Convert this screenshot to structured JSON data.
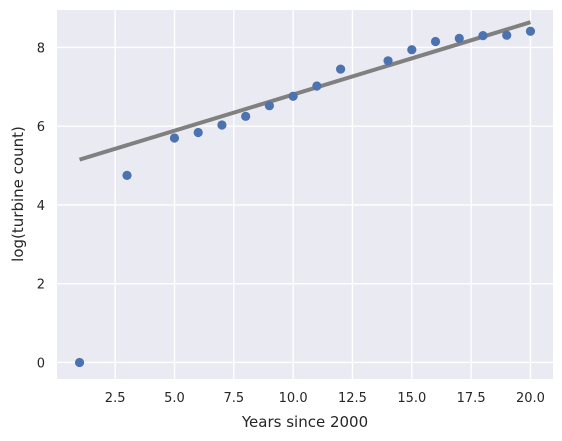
{
  "chart_data": {
    "type": "scatter",
    "title": "",
    "xlabel": "Years since 2000",
    "ylabel": "log(turbine count)",
    "xlim": [
      0.05,
      20.95
    ],
    "ylim": [
      -0.42,
      8.95
    ],
    "xticks": [
      2.5,
      5.0,
      7.5,
      10.0,
      12.5,
      15.0,
      17.5,
      20.0
    ],
    "xtick_labels": [
      "2.5",
      "5.0",
      "7.5",
      "10.0",
      "12.5",
      "15.0",
      "17.5",
      "20.0"
    ],
    "yticks": [
      0,
      2,
      4,
      6,
      8
    ],
    "ytick_labels": [
      "0",
      "2",
      "4",
      "6",
      "8"
    ],
    "grid": true,
    "background": "#eaeaf2",
    "point_color": "#4c72b0",
    "line_color": "#808080",
    "points": [
      {
        "x": 1,
        "y": 0.0
      },
      {
        "x": 3,
        "y": 4.75
      },
      {
        "x": 5,
        "y": 5.7
      },
      {
        "x": 6,
        "y": 5.84
      },
      {
        "x": 7,
        "y": 6.03
      },
      {
        "x": 8,
        "y": 6.25
      },
      {
        "x": 9,
        "y": 6.52
      },
      {
        "x": 10,
        "y": 6.76
      },
      {
        "x": 11,
        "y": 7.02
      },
      {
        "x": 12,
        "y": 7.45
      },
      {
        "x": 14,
        "y": 7.66
      },
      {
        "x": 15,
        "y": 7.94
      },
      {
        "x": 16,
        "y": 8.15
      },
      {
        "x": 17,
        "y": 8.23
      },
      {
        "x": 18,
        "y": 8.3
      },
      {
        "x": 19,
        "y": 8.31
      },
      {
        "x": 20,
        "y": 8.41
      }
    ],
    "fit_line": {
      "x": [
        1,
        20
      ],
      "y": [
        5.15,
        8.64
      ]
    }
  }
}
